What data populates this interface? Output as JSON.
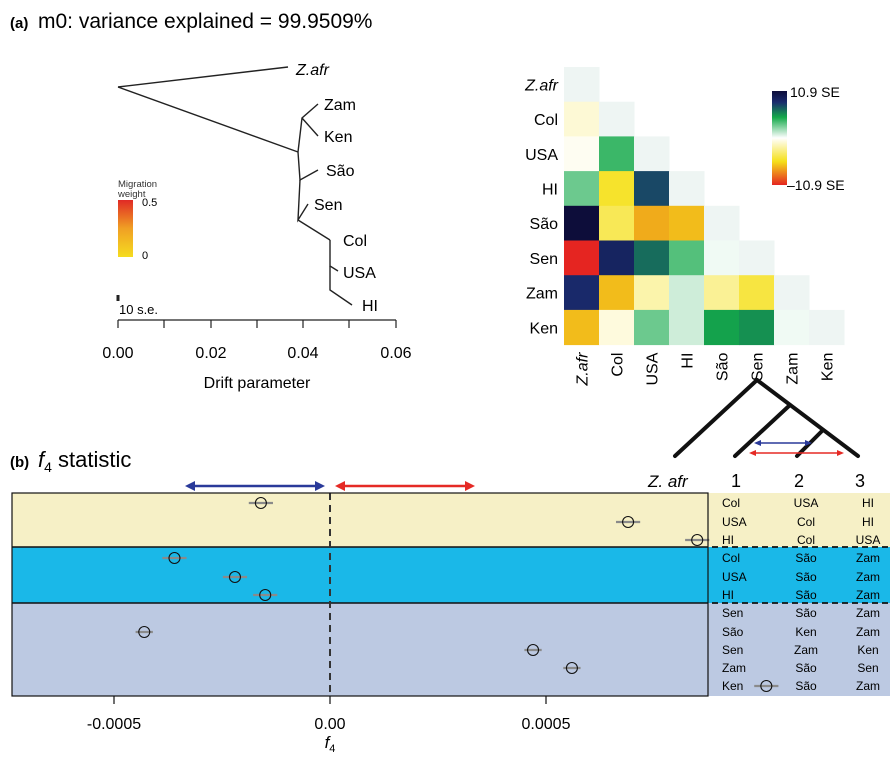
{
  "panel_a": {
    "label": "(a)",
    "title": "m0: variance explained = 99.9509%",
    "tree": {
      "tips": [
        "Z.afr",
        "Zam",
        "Ken",
        "São",
        "Sen",
        "Col",
        "USA",
        "HI"
      ],
      "drift_labels": {
        "Z.afr": 0.039,
        "Zam": 0.043,
        "Ken": 0.043,
        "São": 0.043,
        "Sen": 0.043,
        "Col": 0.046,
        "USA": 0.046,
        "HI": 0.049
      },
      "xlabel": "Drift parameter",
      "xticks": [
        "0.00",
        "0.02",
        "0.04",
        "0.06"
      ],
      "scale_label": "10 s.e.",
      "migration_legend": {
        "title": "Migration weight",
        "max": "0.5",
        "min": "0",
        "colors": [
          "#f5dc20",
          "#f0a024",
          "#e02a25"
        ]
      }
    },
    "heatmap": {
      "populations": [
        "Z.afr",
        "Col",
        "USA",
        "HI",
        "São",
        "Sen",
        "Zam",
        "Ken"
      ],
      "scale_max_label": "10.9 SE",
      "scale_min_label": "–10.9 SE",
      "scale_colors": [
        "#e52521",
        "#f5e019",
        "#ffffff",
        "#14a94a",
        "#1a2c6e",
        "#0d0d3a"
      ]
    }
  },
  "panel_b": {
    "label": "(b)",
    "title_italic": "f",
    "title_sub": "4",
    "title_rest": " statistic",
    "xlabel_italic": "f",
    "xlabel_sub": "4",
    "xticks": [
      "-0.0005",
      "0.00",
      "0.0005"
    ],
    "quartet_header": {
      "z": "Z. afr",
      "c1": "1",
      "c2": "2",
      "c3": "3"
    },
    "group_colors": [
      "#f6f0c6",
      "#1ab8e8",
      "#bcc9e2"
    ],
    "rows": [
      {
        "c1": "Col",
        "c2": "USA",
        "c3": "HI"
      },
      {
        "c1": "USA",
        "c2": "Col",
        "c3": "HI"
      },
      {
        "c1": "HI",
        "c2": "Col",
        "c3": "USA"
      },
      {
        "c1": "Col",
        "c2": "São",
        "c3": "Zam"
      },
      {
        "c1": "USA",
        "c2": "São",
        "c3": "Zam"
      },
      {
        "c1": "HI",
        "c2": "São",
        "c3": "Zam"
      },
      {
        "c1": "Sen",
        "c2": "São",
        "c3": "Zam"
      },
      {
        "c1": "São",
        "c2": "Ken",
        "c3": "Zam"
      },
      {
        "c1": "Sen",
        "c2": "Zam",
        "c3": "Ken"
      },
      {
        "c1": "Zam",
        "c2": "São",
        "c3": "Sen"
      },
      {
        "c1": "Ken",
        "c2": "São",
        "c3": "Zam"
      }
    ]
  },
  "chart_data": [
    {
      "type": "heatmap",
      "title": "",
      "rows": [
        "Z.afr",
        "Col",
        "USA",
        "HI",
        "São",
        "Sen",
        "Zam",
        "Ken"
      ],
      "columns": [
        "Z.afr",
        "Col",
        "USA",
        "HI",
        "São",
        "Sen",
        "Zam",
        "Ken"
      ],
      "value_range": [
        -10.9,
        10.9
      ],
      "values": [
        [
          0.2,
          null,
          null,
          null,
          null,
          null,
          null,
          null
        ],
        [
          -1.0,
          0.3,
          null,
          null,
          null,
          null,
          null,
          null
        ],
        [
          -0.3,
          4.0,
          -6.0,
          null,
          null,
          null,
          null,
          null
        ],
        [
          3.0,
          -5.0,
          7.5,
          0.3,
          null,
          null,
          null,
          null
        ],
        [
          10.9,
          -4.0,
          -7.0,
          -6.5,
          0.2,
          null,
          null,
          null
        ],
        [
          -10.9,
          9.0,
          6.5,
          3.5,
          0.3,
          0.2,
          null,
          null
        ],
        [
          8.5,
          -6.5,
          -2.0,
          1.0,
          -2.5,
          -4.5,
          0.2,
          null
        ],
        [
          -6.5,
          -0.8,
          3.0,
          1.0,
          5.0,
          5.5,
          0.3,
          0.3
        ]
      ]
    },
    {
      "type": "scatter",
      "title": "f4 statistic",
      "xlabel": "f4",
      "xlim": [
        -0.00093,
        0.00115
      ],
      "x": [
        -0.00016,
        0.00069,
        0.00085,
        -0.00036,
        -0.00022,
        -0.00015,
        -0.00088,
        -0.00043,
        0.00047,
        0.00056,
        0.00101
      ],
      "xerr": [
        2.8e-05,
        2.8e-05,
        2.8e-05,
        2.8e-05,
        2.8e-05,
        2.8e-05,
        2.8e-05,
        2e-05,
        2e-05,
        2e-05,
        2.8e-05
      ],
      "groups": [
        1,
        1,
        1,
        2,
        2,
        2,
        3,
        3,
        3,
        3,
        3
      ],
      "categories": [
        "Col USA HI",
        "USA Col HI",
        "HI Col USA",
        "Col São Zam",
        "USA São Zam",
        "HI São Zam",
        "Sen São Zam",
        "São Ken Zam",
        "Sen Zam Ken",
        "Zam São Sen",
        "Ken São Zam"
      ]
    }
  ]
}
